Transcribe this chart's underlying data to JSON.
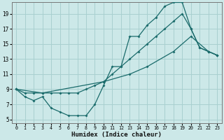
{
  "xlabel": "Humidex (Indice chaleur)",
  "bg_color": "#cce8e8",
  "grid_color": "#a8d0d0",
  "line_color": "#1a6b6b",
  "xlim": [
    -0.5,
    23.5
  ],
  "ylim": [
    4.5,
    20.5
  ],
  "xticks": [
    0,
    1,
    2,
    3,
    4,
    5,
    6,
    7,
    8,
    9,
    10,
    11,
    12,
    13,
    14,
    15,
    16,
    17,
    18,
    19,
    20,
    21,
    22,
    23
  ],
  "yticks": [
    5,
    7,
    9,
    11,
    13,
    15,
    17,
    19
  ],
  "line1_x": [
    0,
    1,
    2,
    3,
    4,
    5,
    6,
    7,
    8,
    9,
    10,
    11,
    12,
    13,
    14,
    15,
    16,
    17,
    18,
    19,
    20,
    21,
    22,
    23
  ],
  "line1_y": [
    9,
    8,
    7.5,
    8,
    6.5,
    6,
    5.5,
    5.5,
    5.5,
    7,
    9.5,
    12,
    12,
    16,
    16,
    17.5,
    18.5,
    20,
    20.5,
    20.5,
    17,
    14.5,
    14,
    13.5
  ],
  "line2_x": [
    0,
    1,
    2,
    3,
    4,
    5,
    6,
    7,
    8,
    9,
    10,
    11,
    12,
    13,
    14,
    15,
    16,
    17,
    18,
    19,
    20,
    21,
    22,
    23
  ],
  "line2_y": [
    9,
    8.5,
    8.5,
    8.5,
    8.5,
    8.5,
    8.5,
    8.5,
    9,
    9.5,
    10,
    11,
    12,
    13,
    14,
    15,
    16,
    17,
    18,
    19,
    17,
    14.5,
    14,
    13.5
  ],
  "line3_x": [
    0,
    3,
    10,
    13,
    15,
    18,
    20,
    22,
    23
  ],
  "line3_y": [
    9,
    8.5,
    10,
    11,
    12,
    14,
    16,
    14,
    13.5
  ]
}
